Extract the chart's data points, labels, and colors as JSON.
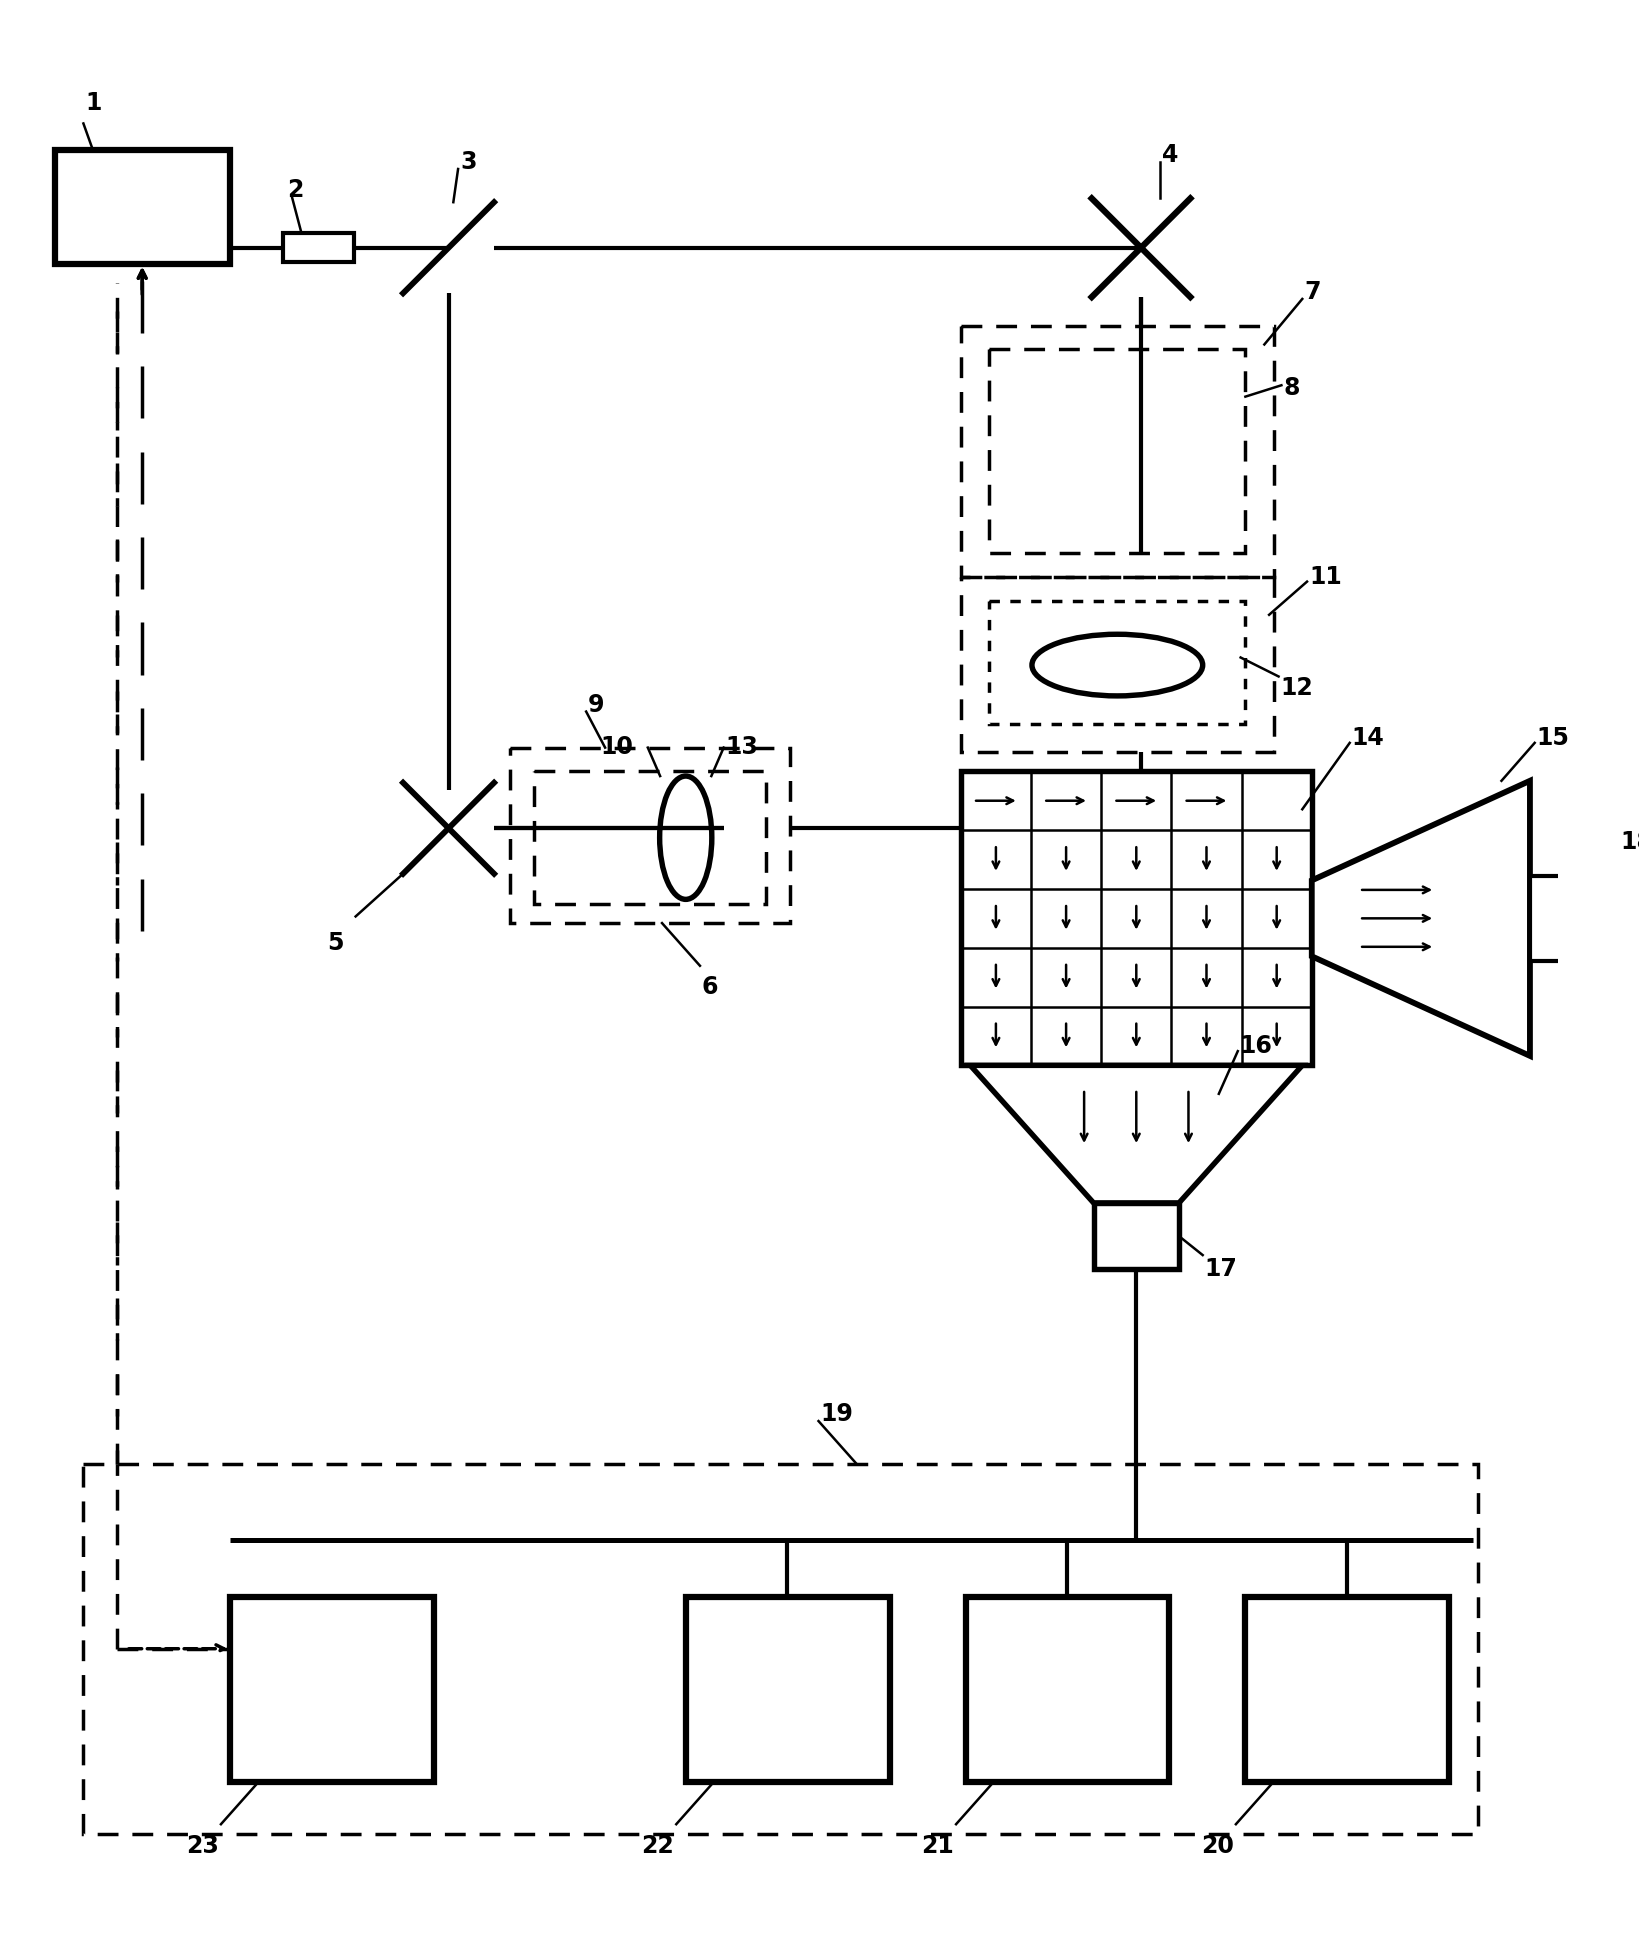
{
  "bg_color": "#ffffff",
  "lc": "#000000",
  "lw": 3.0,
  "dlw": 2.5,
  "lw_thin": 1.8,
  "figsize": [
    16.4,
    19.6
  ],
  "dpi": 100
}
